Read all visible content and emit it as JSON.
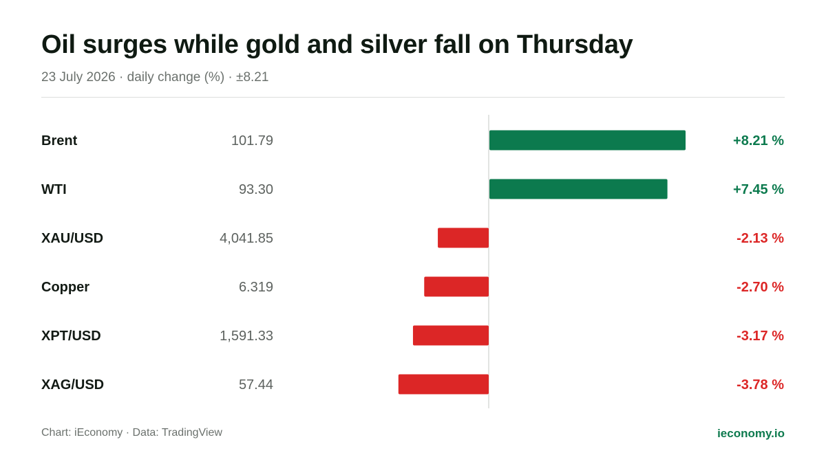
{
  "header": {
    "title": "Oil surges while gold and silver fall on Thursday",
    "subtitle": "23 July 2026 · daily change (%) · ±8.21"
  },
  "footer": {
    "source": "Chart: iEconomy · Data: TradingView",
    "brand": "ieconomy.io"
  },
  "colors": {
    "positive": "#0c7a4e",
    "negative": "#dc2626",
    "axis": "#d9dbd9"
  },
  "chart_data": {
    "type": "bar",
    "orientation": "horizontal",
    "categories": [
      "Brent",
      "WTI",
      "XAU/USD",
      "Copper",
      "XPT/USD",
      "XAG/USD"
    ],
    "prices": [
      "101.79",
      "93.30",
      "4,041.85",
      "6.319",
      "1,591.33",
      "57.44"
    ],
    "values": [
      8.21,
      7.45,
      -2.13,
      -2.7,
      -3.17,
      -3.78
    ],
    "value_labels": [
      "+8.21 %",
      "+7.45 %",
      "-2.13 %",
      "-2.70 %",
      "-3.17 %",
      "-3.78 %"
    ],
    "xlim": [
      -8.21,
      8.21
    ],
    "grid": false,
    "legend": "none"
  }
}
